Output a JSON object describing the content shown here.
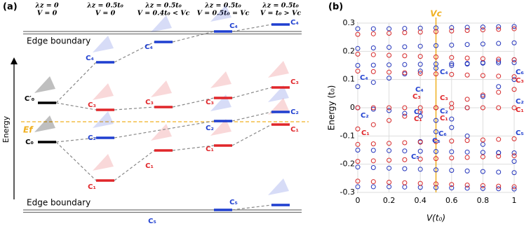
{
  "panel_a": {
    "label": "(a)",
    "headers": [
      [
        "λz = 0",
        "V = 0"
      ],
      [
        "λz = 0.5t₀",
        "V = 0"
      ],
      [
        "λz = 0.5t₀",
        "V = 0.4t₀ < Vc"
      ],
      [
        "λz = 0.5t₀",
        "V = 0.5t₀ = Vc"
      ],
      [
        "λz = 0.5t₀",
        "V = t₀ > Vc"
      ]
    ],
    "edge_top": "Edge boundary",
    "edge_bottom": "Edge boundary",
    "energy_axis": "Energy",
    "fermi": "Ef",
    "level_labels": [
      "C′₀",
      "C₀",
      "C₄",
      "C₃",
      "C₂",
      "C₁",
      "C₄",
      "C₃",
      "C₁",
      "C₄",
      "C₃",
      "C₂",
      "C₁",
      "C₅",
      "C₄",
      "C₃",
      "C₂",
      "C₁",
      "C₅"
    ]
  },
  "chart_data": {
    "type": "scatter",
    "title": "(b)",
    "x_label": "V(t₀)",
    "y_label": "Energy (t₀)",
    "x": [
      0,
      0.1,
      0.2,
      0.3,
      0.4,
      0.5,
      0.6,
      0.7,
      0.8,
      0.9,
      1
    ],
    "xlim": [
      0,
      1
    ],
    "xticks": [
      0,
      0.2,
      0.4,
      0.6,
      0.8,
      1
    ],
    "ylim": [
      -0.3,
      0.3
    ],
    "yticks": [
      -0.3,
      -0.2,
      -0.1,
      0,
      0.1,
      0.2,
      0.3
    ],
    "grid": true,
    "vline": 0.5,
    "vline_label": "Vc",
    "vline_color": "#f0b020",
    "series": [
      {
        "color": "#d62728",
        "values": [
          -0.075,
          -0.06,
          -0.045,
          -0.03,
          -0.015,
          0,
          0.015,
          0.03,
          0.045,
          0.055,
          0.065
        ]
      },
      {
        "color": "#2233bb",
        "values": [
          0.075,
          0.09,
          0.105,
          0.12,
          0.13,
          0.14,
          0.15,
          0.155,
          0.16,
          0.165,
          0.17
        ]
      },
      {
        "color": "#2233bb",
        "values": [
          0,
          -0.005,
          -0.01,
          -0.02,
          -0.03,
          -0.045,
          -0.07,
          -0.1,
          -0.13,
          -0.16,
          -0.19
        ]
      },
      {
        "color": "#2233bb",
        "values": [
          null,
          null,
          null,
          null,
          -0.12,
          -0.085,
          -0.04,
          0,
          0.04,
          0.075,
          0.1
        ]
      },
      {
        "color": "#d62728",
        "values": [
          0,
          0,
          0,
          0,
          0,
          0,
          0,
          0,
          0,
          0,
          0
        ]
      },
      {
        "color": "#2233bb",
        "values": [
          0.28,
          0.28,
          0.28,
          0.281,
          0.282,
          0.283,
          0.284,
          0.285,
          0.286,
          0.287,
          0.288
        ]
      },
      {
        "color": "#2233bb",
        "values": [
          0.21,
          0.212,
          0.214,
          0.216,
          0.218,
          0.22,
          0.222,
          0.224,
          0.226,
          0.228,
          0.23
        ]
      },
      {
        "color": "#2233bb",
        "values": [
          0.15,
          0.151,
          0.152,
          0.153,
          0.154,
          0.155,
          0.156,
          0.157,
          0.158,
          0.159,
          0.16
        ]
      },
      {
        "color": "#2233bb",
        "values": [
          -0.15,
          -0.151,
          -0.152,
          -0.153,
          -0.154,
          -0.155,
          -0.156,
          -0.157,
          -0.158,
          -0.159,
          -0.16
        ]
      },
      {
        "color": "#2233bb",
        "values": [
          -0.21,
          -0.212,
          -0.214,
          -0.216,
          -0.218,
          -0.22,
          -0.222,
          -0.224,
          -0.226,
          -0.228,
          -0.23
        ]
      },
      {
        "color": "#2233bb",
        "values": [
          -0.28,
          -0.28,
          -0.28,
          -0.281,
          -0.282,
          -0.283,
          -0.284,
          -0.285,
          -0.286,
          -0.287,
          -0.288
        ]
      },
      {
        "color": "#d62728",
        "values": [
          0.26,
          0.262,
          0.264,
          0.266,
          0.268,
          0.27,
          0.272,
          0.274,
          0.276,
          0.278,
          0.28
        ]
      },
      {
        "color": "#d62728",
        "values": [
          0.19,
          0.188,
          0.186,
          0.184,
          0.182,
          0.18,
          0.178,
          0.176,
          0.174,
          0.172,
          0.17
        ]
      },
      {
        "color": "#d62728",
        "values": [
          0.13,
          0.128,
          0.126,
          0.124,
          0.122,
          0.12,
          0.118,
          0.116,
          0.114,
          0.112,
          0.11
        ]
      },
      {
        "color": "#d62728",
        "values": [
          -0.13,
          -0.128,
          -0.126,
          -0.124,
          -0.122,
          -0.12,
          -0.118,
          -0.116,
          -0.114,
          -0.112,
          -0.11
        ]
      },
      {
        "color": "#d62728",
        "values": [
          -0.19,
          -0.188,
          -0.186,
          -0.184,
          -0.182,
          -0.18,
          -0.178,
          -0.176,
          -0.174,
          -0.172,
          -0.17
        ]
      },
      {
        "color": "#d62728",
        "values": [
          -0.26,
          -0.262,
          -0.264,
          -0.266,
          -0.268,
          -0.27,
          -0.272,
          -0.274,
          -0.276,
          -0.278,
          -0.28
        ]
      }
    ],
    "annotations": [
      "C₄",
      "C₂",
      "C₁",
      "C₄",
      "C₃",
      "C₂",
      "C₁",
      "C₅",
      "C₄",
      "C₃",
      "C₂",
      "C₁",
      "C₆",
      "C₅",
      "C₆",
      "C₃",
      "C₂",
      "C₁",
      "C₅"
    ]
  }
}
